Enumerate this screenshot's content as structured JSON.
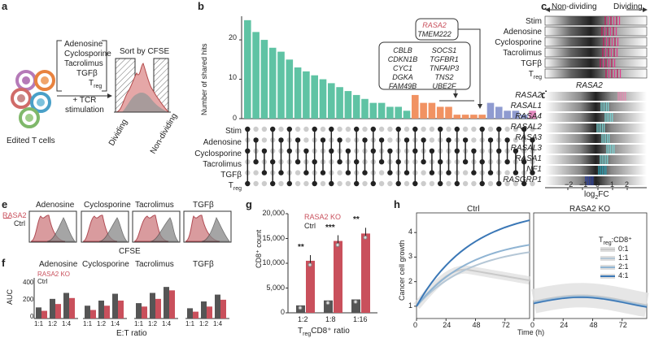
{
  "panel_labels": {
    "a": "a",
    "b": "b",
    "c": "c",
    "d": "d",
    "e": "e",
    "f": "f",
    "g": "g",
    "h": "h"
  },
  "colors": {
    "teal": "#5fc3a4",
    "orange": "#f19262",
    "purple": "#8f9bd0",
    "pink": "#e58ac0",
    "red": "#c9505c",
    "grey": "#555555",
    "blue": "#3a77b6"
  },
  "panel_a": {
    "conditions": [
      "Adenosine",
      "Cyclosporine",
      "Tacrolimus",
      "TGFβ",
      "T"
    ],
    "treg_sub": "reg",
    "tcr": [
      "+ TCR",
      "stimulation"
    ],
    "sort_title": "Sort by CFSE",
    "dividing": "Dividing",
    "non_dividing": "Non-dividing",
    "edited": "Edited T cells"
  },
  "chart_data": [
    {
      "panel": "b",
      "type": "bar",
      "ylabel": "Number of shared hits",
      "ylim": [
        0,
        26
      ],
      "yticks": [
        "0",
        "10",
        "20"
      ],
      "values": [
        25,
        22,
        20,
        18,
        17,
        15,
        13,
        12,
        11,
        10,
        9,
        8,
        7,
        6,
        5,
        4,
        4,
        3,
        3,
        2,
        6,
        4,
        4,
        3,
        3,
        1,
        1,
        1,
        1,
        4,
        3,
        2,
        2,
        1,
        2
      ],
      "groups": [
        "teal",
        "teal",
        "teal",
        "teal",
        "teal",
        "teal",
        "teal",
        "teal",
        "teal",
        "teal",
        "teal",
        "teal",
        "teal",
        "teal",
        "teal",
        "teal",
        "teal",
        "teal",
        "teal",
        "teal",
        "orange",
        "orange",
        "orange",
        "orange",
        "orange",
        "orange",
        "orange",
        "orange",
        "orange",
        "purple",
        "purple",
        "purple",
        "purple",
        "purple",
        "pink"
      ],
      "conditions": [
        "Stim",
        "Adenosine",
        "Cyclosporine",
        "Tacrolimus",
        "TGFβ",
        "T"
      ],
      "callout_left": [
        "CBLB",
        "CDKN1B",
        "CYC1",
        "DGKA",
        "FAM49B"
      ],
      "callout_mid": [
        "SOCS1",
        "TGFBR1",
        "TNFAIP3",
        "TNS2",
        "UBE2F"
      ],
      "callout_top": [
        "RASA2",
        "TMEM222"
      ]
    },
    {
      "panel": "g",
      "type": "bar",
      "ylabel": "CD8⁺ count",
      "ylim": [
        0,
        20000
      ],
      "yticks": [
        "0",
        "5,000",
        "10,000",
        "15,000",
        "20,000"
      ],
      "categories": [
        "1:2",
        "1:8",
        "1:16"
      ],
      "xlabel": "T",
      "series": [
        {
          "name": "Ctrl",
          "values": [
            1500,
            2500,
            2700
          ]
        },
        {
          "name": "RASA2 KO",
          "values": [
            10500,
            14500,
            16000
          ]
        }
      ],
      "significance": [
        "**",
        "***",
        "**"
      ]
    },
    {
      "panel": "f",
      "type": "bar",
      "ylabel": "AUC",
      "xlabel": "E:T ratio",
      "yticks": [
        "0",
        "200",
        "400"
      ],
      "panels": [
        "Adenosine",
        "Cyclosporine",
        "Tacrolimus",
        "TGFβ"
      ],
      "categories": [
        "1:1",
        "1:2",
        "1:4"
      ],
      "series": [
        {
          "name": "Ctrl",
          "values": [
            [
              130,
              230,
              300
            ],
            [
              150,
              210,
              290
            ],
            [
              180,
              300,
              370
            ],
            [
              120,
              200,
              280
            ]
          ]
        },
        {
          "name": "RASA2 KO",
          "values": [
            [
              90,
              170,
              240
            ],
            [
              100,
              150,
              210
            ],
            [
              140,
              230,
              330
            ],
            [
              80,
              140,
              220
            ]
          ]
        }
      ]
    },
    {
      "panel": "h",
      "type": "line",
      "ylabel": "Cancer cell growth",
      "xlabel": "Time (h)",
      "xticks": [
        "0",
        "24",
        "48",
        "72"
      ],
      "yticks": [
        "1",
        "2",
        "3",
        "4"
      ],
      "subplots": [
        "Ctrl",
        "RASA2 KO"
      ],
      "legend_title": "T",
      "series": [
        {
          "name": "0:1"
        },
        {
          "name": "1:1"
        },
        {
          "name": "2:1"
        },
        {
          "name": "4:1"
        }
      ]
    }
  ],
  "panel_c": {
    "left": "Non-dividing",
    "right": "Dividing",
    "rows": [
      "Stim",
      "Adenosine",
      "Cyclosporine",
      "Tacrolimus",
      "TGFβ",
      "T"
    ],
    "xlabel": "RASA2"
  },
  "panel_d": {
    "genes": [
      "RASA2",
      "RASAL1",
      "RASA4",
      "RASAL2",
      "RASA3",
      "RASAL3",
      "RASA1",
      "NF1",
      "RASGRP1"
    ],
    "xticks": [
      "−2",
      "−1",
      "0",
      "1",
      "2"
    ],
    "xlabel": "log"
  },
  "panel_e": {
    "conditions": [
      "Adenosine",
      "Cyclosporine",
      "Tacrolimus",
      "TGFβ"
    ],
    "legend_ko": "RASA2 KO",
    "legend_ctrl": "Ctrl",
    "xlabel": "CFSE"
  },
  "labels": {
    "reg": "reg",
    "cd8": "CD8⁺ ratio",
    "ratio_suffix": ":CD8⁺",
    "fc_sub": "2",
    "fc_tail": "FC"
  }
}
